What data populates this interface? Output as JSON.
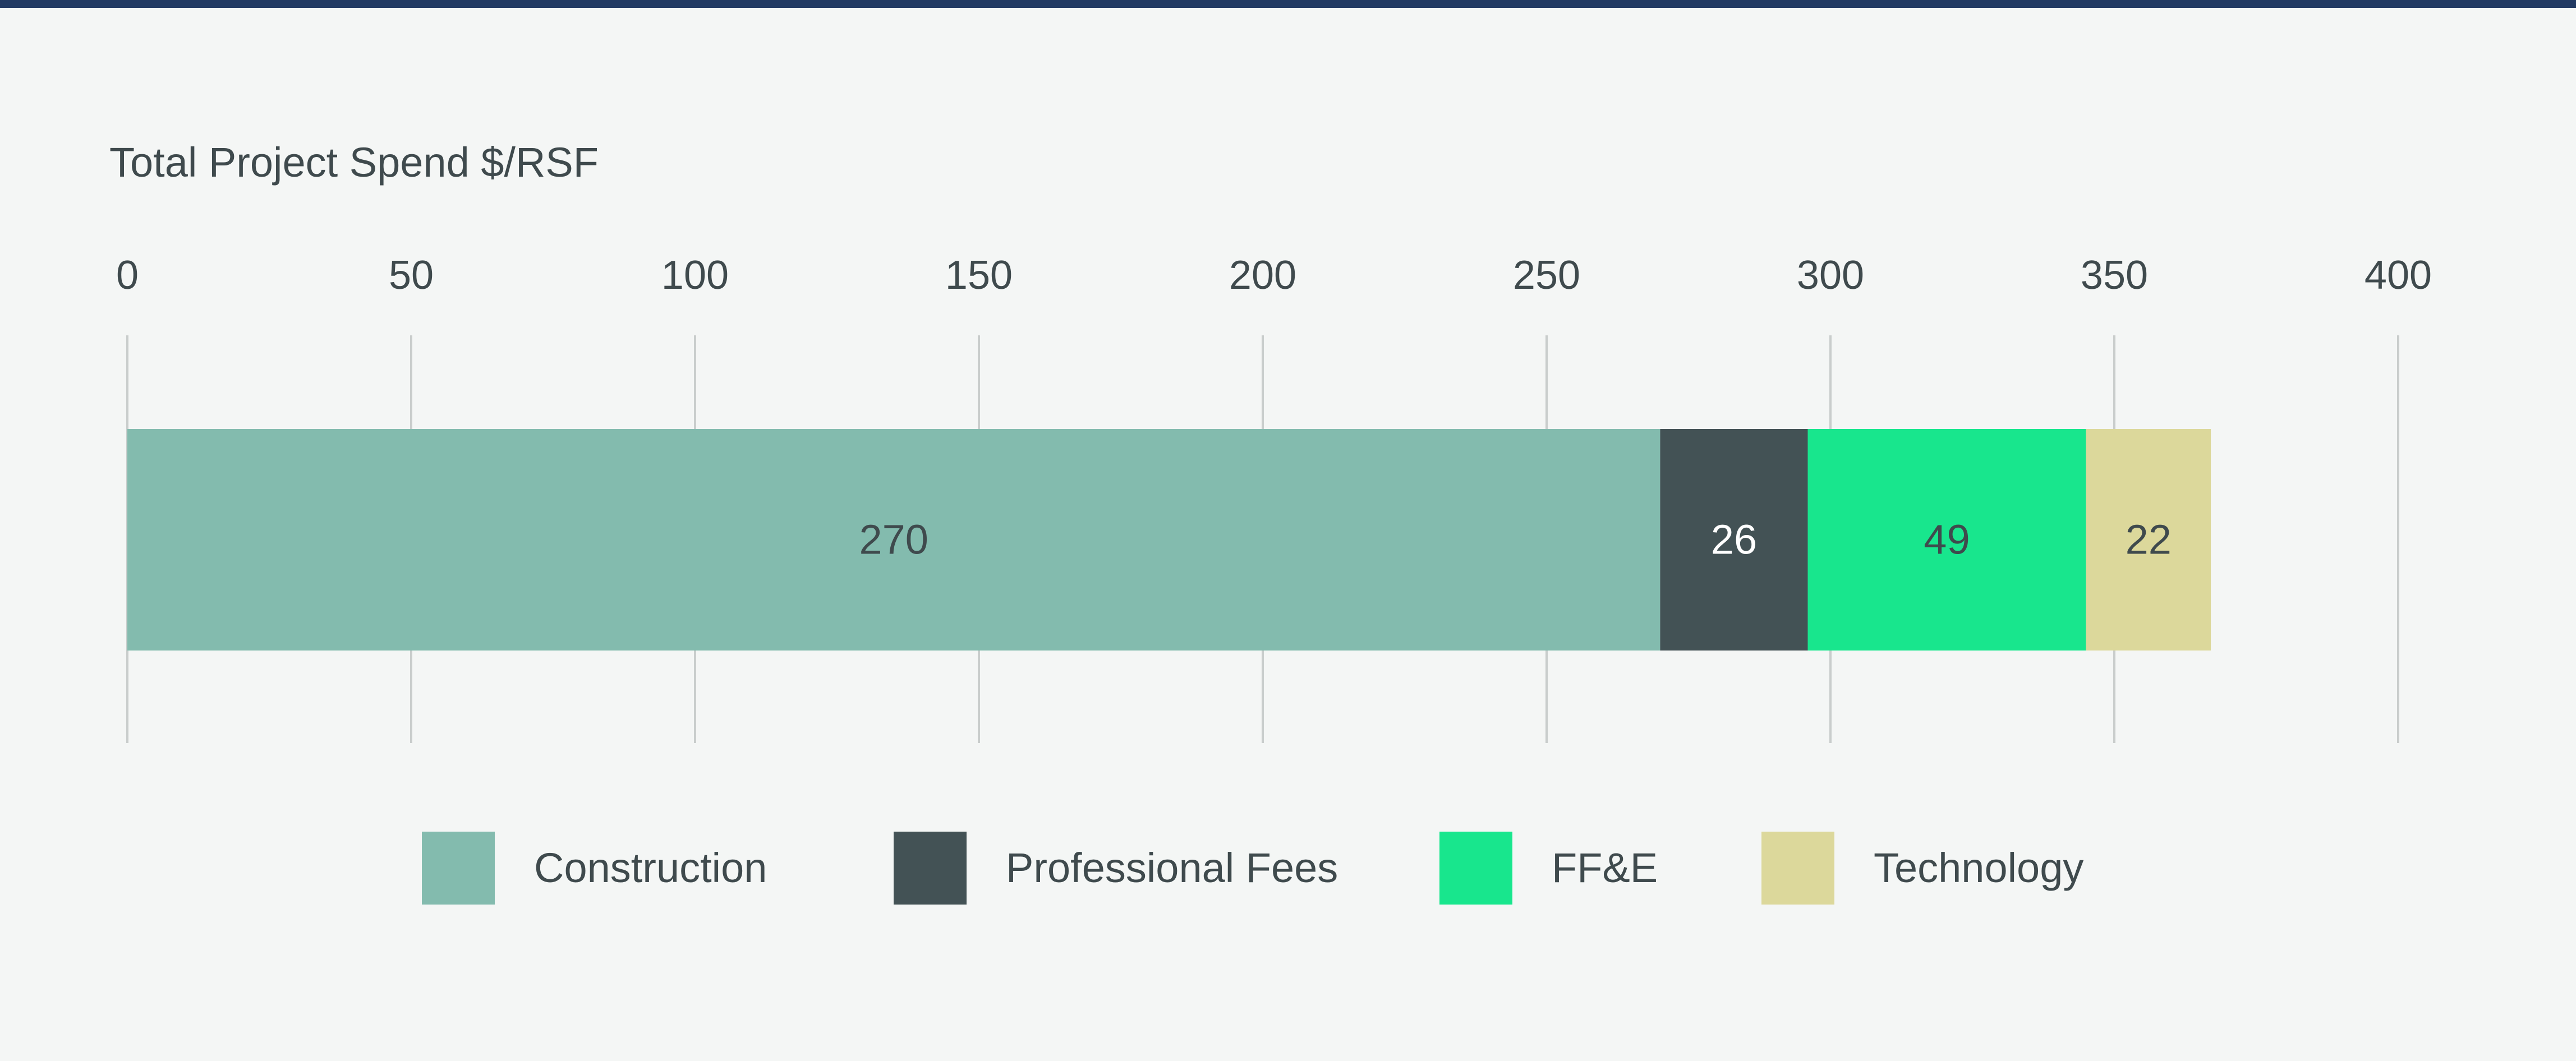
{
  "colors": {
    "rule": "#223a63",
    "background": "#f4f6f5",
    "text": "#3f4a4d",
    "gridline": "#c9cdcc"
  },
  "chart_data": {
    "type": "bar",
    "orientation": "horizontal",
    "stacked": true,
    "title": "Total Project Spend $/RSF",
    "xlim": [
      0,
      400
    ],
    "xticks": [
      "0",
      "50",
      "100",
      "150",
      "200",
      "250",
      "300",
      "350",
      "400"
    ],
    "grid": true,
    "legend_position": "bottom",
    "series": [
      {
        "name": "Construction",
        "value": 270,
        "label": "270",
        "color": "#83bbae",
        "label_color": "#3f4a4d"
      },
      {
        "name": "Professional Fees",
        "value": 26,
        "label": "26",
        "color": "#435255",
        "label_color": "#ffffff"
      },
      {
        "name": "FF&E",
        "value": 49,
        "label": "49",
        "color": "#18e68d",
        "label_color": "#3f4a4d"
      },
      {
        "name": "Technology",
        "value": 22,
        "label": "22",
        "color": "#dcd89b",
        "label_color": "#3f4a4d"
      }
    ]
  }
}
